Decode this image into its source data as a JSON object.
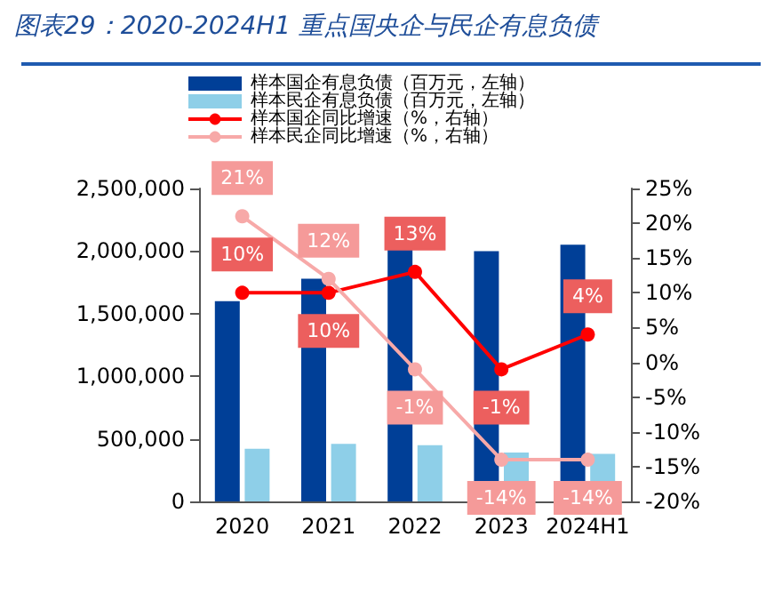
{
  "chart_data": {
    "type": "bar",
    "title": "图表29：2020-2024H1 重点国央企与民企有息负债",
    "categories": [
      "2020",
      "2021",
      "2022",
      "2023",
      "2024H1"
    ],
    "series": [
      {
        "name": "样本国企有息负债（百万元，左轴）",
        "color": "#003f97",
        "values": [
          1600000,
          1780000,
          2010000,
          2000000,
          2050000
        ]
      },
      {
        "name": "样本民企有息负债（百万元，左轴）",
        "color": "#8ecfe8",
        "values": [
          420000,
          460000,
          450000,
          390000,
          380000
        ]
      },
      {
        "name": "样本国企同比增速（%，右轴）",
        "type": "line",
        "axis": "y2",
        "color": "#ff0000",
        "values": [
          10,
          10,
          13,
          -1,
          4
        ],
        "value_labels": [
          "10%",
          "10%",
          "13%",
          "-1%",
          "4%"
        ]
      },
      {
        "name": "样本民企同比增速（%，右轴）",
        "type": "line",
        "axis": "y2",
        "color": "#f7a9a8",
        "values": [
          21,
          12,
          -1,
          -14,
          -14
        ],
        "value_labels": [
          "21%",
          "12%",
          "-1%",
          "-14%",
          "-14%"
        ]
      }
    ],
    "ylim": [
      0,
      2500000
    ],
    "yticks": [
      0,
      {
        "value": 500000,
        "label": "500,000"
      },
      {
        "value": 1000000,
        "label": "1,000,000"
      },
      {
        "value": 1500000,
        "label": "1,500,000"
      },
      {
        "value": 2000000,
        "label": "2,000,000"
      },
      {
        "value": 2500000,
        "label": "2,500,000"
      }
    ],
    "y2lim": [
      -20,
      25
    ],
    "y2ticks": [
      {
        "value": -20,
        "label": "-20%"
      },
      {
        "value": -15,
        "label": "-15%"
      },
      {
        "value": -10,
        "label": "-10%"
      },
      {
        "value": -5,
        "label": "-5%"
      },
      {
        "value": 0,
        "label": "0%"
      },
      {
        "value": 5,
        "label": "5%"
      },
      {
        "value": 10,
        "label": "10%"
      },
      {
        "value": 15,
        "label": "15%"
      },
      {
        "value": 20,
        "label": "20%"
      },
      {
        "value": 25,
        "label": "25%"
      }
    ],
    "legend": "top",
    "grid": false,
    "marker": "circle",
    "line_style": "solid"
  }
}
